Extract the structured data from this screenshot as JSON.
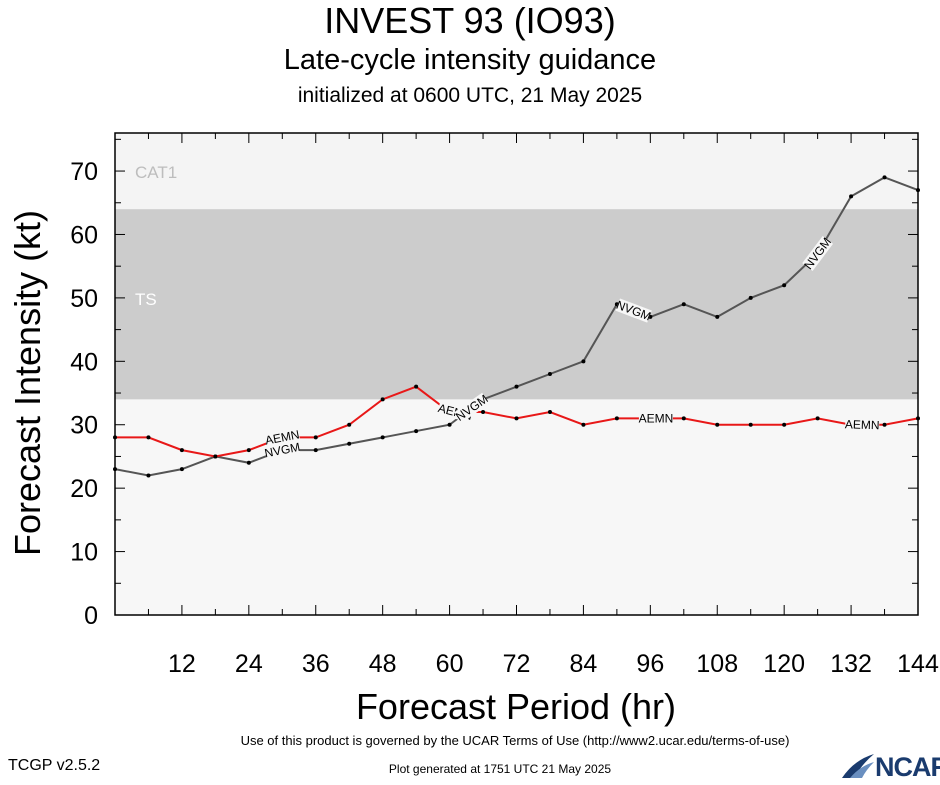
{
  "header": {
    "title": "INVEST 93 (IO93)",
    "subtitle": "Late-cycle intensity guidance",
    "initialized": "initialized at 0600 UTC, 21 May 2025"
  },
  "footer": {
    "terms": "Use of this product is governed by the UCAR Terms of Use (http://www2.ucar.edu/terms-of-use)",
    "plot_generated": "Plot generated at 1751 UTC   21 May 2025",
    "version": "TCGP v2.5.2",
    "logo_text": "NCAR"
  },
  "chart_data": {
    "type": "line",
    "title": "INVEST 93 (IO93)",
    "xlabel": "Forecast Period (hr)",
    "ylabel": "Forecast Intensity (kt)",
    "xlim": [
      0,
      144
    ],
    "ylim": [
      0,
      76
    ],
    "xticks": [
      12,
      24,
      36,
      48,
      60,
      72,
      84,
      96,
      108,
      120,
      132,
      144
    ],
    "yticks": [
      0,
      10,
      20,
      30,
      40,
      50,
      60,
      70
    ],
    "bands": [
      {
        "name": "TS",
        "from": 34,
        "to": 64,
        "color": "#cccccc"
      },
      {
        "name": "CAT1",
        "from": 64,
        "to": 83,
        "color": "#f4f4f4"
      }
    ],
    "below_band_color": "#f7f7f7",
    "series": [
      {
        "name": "AEMN",
        "color": "#e81818",
        "x": [
          0,
          6,
          12,
          18,
          24,
          30,
          36,
          42,
          48,
          54,
          60,
          66,
          72,
          78,
          84,
          90,
          96,
          102,
          108,
          114,
          120,
          126,
          132,
          138,
          144
        ],
        "y": [
          28,
          28,
          26,
          25,
          26,
          28,
          28,
          30,
          34,
          36,
          32,
          32,
          31,
          32,
          30,
          31,
          31,
          31,
          30,
          30,
          30,
          31,
          30,
          30,
          31
        ],
        "label_at": [
          30,
          61,
          97,
          134
        ]
      },
      {
        "name": "NVGM",
        "color": "#555555",
        "x": [
          0,
          6,
          12,
          18,
          24,
          30,
          36,
          42,
          48,
          54,
          60,
          66,
          72,
          78,
          84,
          90,
          96,
          102,
          108,
          114,
          120,
          126,
          132,
          138,
          144
        ],
        "y": [
          23,
          22,
          23,
          25,
          24,
          26,
          26,
          27,
          28,
          29,
          30,
          34,
          36,
          38,
          40,
          49,
          47,
          49,
          47,
          50,
          52,
          57,
          66,
          69,
          67
        ],
        "label_at": [
          30,
          64,
          93,
          126
        ]
      }
    ]
  }
}
